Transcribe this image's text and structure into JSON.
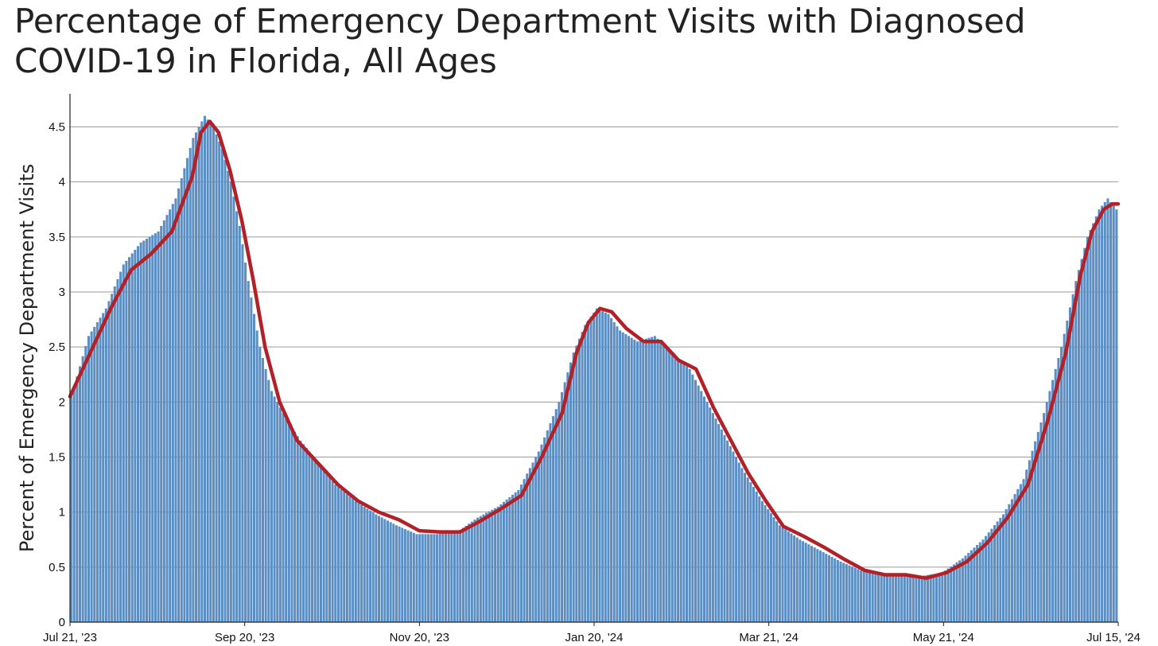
{
  "chart_data": {
    "type": "bar",
    "title": "Percentage of Emergency Department Visits with Diagnosed COVID-19 in Florida, All Ages",
    "xlabel": "",
    "ylabel": "Percent of Emergency Department Visits",
    "x_start": "2023-07-21",
    "x_end": "2024-07-15",
    "x_tick_labels": [
      "Jul 21, '23",
      "Sep 20, '23",
      "Nov 20, '23",
      "Jan 20, '24",
      "Mar 21, '24",
      "May 21, '24",
      "Jul 15, '24"
    ],
    "y_ticks": [
      0,
      0.5,
      1,
      1.5,
      2,
      2.5,
      3,
      3.5,
      4,
      4.5
    ],
    "y_tick_labels": [
      "0",
      "0.5",
      "1",
      "1.5",
      "2",
      "2.5",
      "3",
      "3.5",
      "4",
      "4.5"
    ],
    "ylim": [
      0,
      4.8
    ],
    "grid": true,
    "series": [
      {
        "kind": "bar",
        "color": "#5b8fc4",
        "points": [
          [
            "2023-07-21",
            2.05
          ],
          [
            "2023-07-27",
            2.6
          ],
          [
            "2023-08-02",
            2.85
          ],
          [
            "2023-08-08",
            3.25
          ],
          [
            "2023-08-14",
            3.45
          ],
          [
            "2023-08-20",
            3.55
          ],
          [
            "2023-08-26",
            3.85
          ],
          [
            "2023-09-01",
            4.4
          ],
          [
            "2023-09-05",
            4.6
          ],
          [
            "2023-09-08",
            4.5
          ],
          [
            "2023-09-11",
            4.3
          ],
          [
            "2023-09-14",
            4.0
          ],
          [
            "2023-09-17",
            3.6
          ],
          [
            "2023-09-20",
            3.1
          ],
          [
            "2023-09-24",
            2.5
          ],
          [
            "2023-09-28",
            2.1
          ],
          [
            "2023-10-03",
            1.85
          ],
          [
            "2023-10-08",
            1.65
          ],
          [
            "2023-10-14",
            1.45
          ],
          [
            "2023-10-20",
            1.25
          ],
          [
            "2023-10-27",
            1.1
          ],
          [
            "2023-11-03",
            0.98
          ],
          [
            "2023-11-10",
            0.88
          ],
          [
            "2023-11-17",
            0.8
          ],
          [
            "2023-11-24",
            0.8
          ],
          [
            "2023-12-01",
            0.82
          ],
          [
            "2023-12-08",
            0.95
          ],
          [
            "2023-12-15",
            1.05
          ],
          [
            "2023-12-22",
            1.2
          ],
          [
            "2023-12-29",
            1.55
          ],
          [
            "2024-01-05",
            2.0
          ],
          [
            "2024-01-10",
            2.45
          ],
          [
            "2024-01-14",
            2.7
          ],
          [
            "2024-01-18",
            2.85
          ],
          [
            "2024-01-22",
            2.8
          ],
          [
            "2024-01-26",
            2.65
          ],
          [
            "2024-02-01",
            2.55
          ],
          [
            "2024-02-07",
            2.6
          ],
          [
            "2024-02-13",
            2.45
          ],
          [
            "2024-02-19",
            2.3
          ],
          [
            "2024-02-25",
            2.0
          ],
          [
            "2024-03-02",
            1.7
          ],
          [
            "2024-03-08",
            1.4
          ],
          [
            "2024-03-15",
            1.1
          ],
          [
            "2024-03-21",
            0.88
          ],
          [
            "2024-03-28",
            0.75
          ],
          [
            "2024-04-04",
            0.65
          ],
          [
            "2024-04-11",
            0.55
          ],
          [
            "2024-04-18",
            0.47
          ],
          [
            "2024-04-25",
            0.44
          ],
          [
            "2024-05-02",
            0.43
          ],
          [
            "2024-05-09",
            0.42
          ],
          [
            "2024-05-16",
            0.45
          ],
          [
            "2024-05-23",
            0.58
          ],
          [
            "2024-05-30",
            0.75
          ],
          [
            "2024-06-06",
            0.98
          ],
          [
            "2024-06-13",
            1.3
          ],
          [
            "2024-06-20",
            1.9
          ],
          [
            "2024-06-26",
            2.5
          ],
          [
            "2024-07-01",
            3.1
          ],
          [
            "2024-07-05",
            3.5
          ],
          [
            "2024-07-09",
            3.75
          ],
          [
            "2024-07-12",
            3.85
          ],
          [
            "2024-07-15",
            3.75
          ]
        ]
      },
      {
        "kind": "line",
        "color": "#b22028",
        "points": [
          [
            "2023-07-21",
            2.05
          ],
          [
            "2023-07-28",
            2.45
          ],
          [
            "2023-08-04",
            2.85
          ],
          [
            "2023-08-11",
            3.2
          ],
          [
            "2023-08-18",
            3.35
          ],
          [
            "2023-08-25",
            3.55
          ],
          [
            "2023-09-01",
            4.05
          ],
          [
            "2023-09-04",
            4.45
          ],
          [
            "2023-09-07",
            4.55
          ],
          [
            "2023-09-10",
            4.45
          ],
          [
            "2023-09-14",
            4.1
          ],
          [
            "2023-09-18",
            3.65
          ],
          [
            "2023-09-22",
            3.1
          ],
          [
            "2023-09-26",
            2.5
          ],
          [
            "2023-10-01",
            2.0
          ],
          [
            "2023-10-07",
            1.65
          ],
          [
            "2023-10-14",
            1.45
          ],
          [
            "2023-10-21",
            1.25
          ],
          [
            "2023-10-28",
            1.1
          ],
          [
            "2023-11-04",
            1.0
          ],
          [
            "2023-11-11",
            0.93
          ],
          [
            "2023-11-18",
            0.83
          ],
          [
            "2023-11-25",
            0.82
          ],
          [
            "2023-12-02",
            0.82
          ],
          [
            "2023-12-09",
            0.92
          ],
          [
            "2023-12-16",
            1.03
          ],
          [
            "2023-12-23",
            1.15
          ],
          [
            "2023-12-30",
            1.5
          ],
          [
            "2024-01-06",
            1.9
          ],
          [
            "2024-01-11",
            2.45
          ],
          [
            "2024-01-15",
            2.72
          ],
          [
            "2024-01-19",
            2.85
          ],
          [
            "2024-01-23",
            2.82
          ],
          [
            "2024-01-28",
            2.67
          ],
          [
            "2024-02-03",
            2.55
          ],
          [
            "2024-02-09",
            2.55
          ],
          [
            "2024-02-15",
            2.38
          ],
          [
            "2024-02-21",
            2.3
          ],
          [
            "2024-02-27",
            1.95
          ],
          [
            "2024-03-04",
            1.65
          ],
          [
            "2024-03-10",
            1.35
          ],
          [
            "2024-03-16",
            1.1
          ],
          [
            "2024-03-22",
            0.87
          ],
          [
            "2024-03-29",
            0.78
          ],
          [
            "2024-04-05",
            0.68
          ],
          [
            "2024-04-12",
            0.57
          ],
          [
            "2024-04-19",
            0.47
          ],
          [
            "2024-04-26",
            0.43
          ],
          [
            "2024-05-03",
            0.43
          ],
          [
            "2024-05-10",
            0.4
          ],
          [
            "2024-05-17",
            0.45
          ],
          [
            "2024-05-24",
            0.55
          ],
          [
            "2024-05-31",
            0.72
          ],
          [
            "2024-06-07",
            0.95
          ],
          [
            "2024-06-14",
            1.25
          ],
          [
            "2024-06-21",
            1.85
          ],
          [
            "2024-06-27",
            2.45
          ],
          [
            "2024-07-02",
            3.15
          ],
          [
            "2024-07-06",
            3.55
          ],
          [
            "2024-07-10",
            3.75
          ],
          [
            "2024-07-13",
            3.8
          ],
          [
            "2024-07-15",
            3.8
          ]
        ]
      }
    ]
  }
}
